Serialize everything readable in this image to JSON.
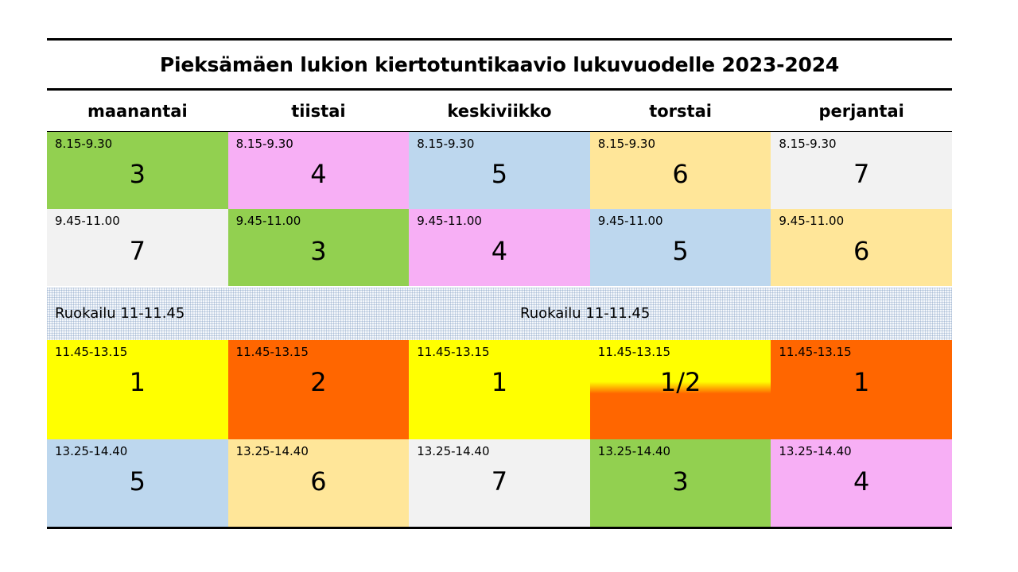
{
  "title": "Pieksämäen lukion kiertotuntikaavio lukuvuodelle 2023-2024",
  "days": [
    "maanantai",
    "tiistai",
    "keskiviikko",
    "torstai",
    "perjantai"
  ],
  "colors": {
    "green": "#92d050",
    "pink": "#f7aff5",
    "blue": "#bdd7ee",
    "peach": "#ffe699",
    "grey": "#f2f2f2",
    "yellow": "#ffff00",
    "orange": "#ff6600"
  },
  "rows": [
    {
      "time": "8.15-9.30",
      "cells": [
        {
          "num": "3",
          "color": "#92d050"
        },
        {
          "num": "4",
          "color": "#f7aff5"
        },
        {
          "num": "5",
          "color": "#bdd7ee"
        },
        {
          "num": "6",
          "color": "#ffe699"
        },
        {
          "num": "7",
          "color": "#f2f2f2"
        }
      ]
    },
    {
      "time": "9.45-11.00",
      "cells": [
        {
          "num": "7",
          "color": "#f2f2f2"
        },
        {
          "num": "3",
          "color": "#92d050"
        },
        {
          "num": "4",
          "color": "#f7aff5"
        },
        {
          "num": "5",
          "color": "#bdd7ee"
        },
        {
          "num": "6",
          "color": "#ffe699"
        }
      ]
    },
    {
      "time": "11.45-13.15",
      "cells": [
        {
          "num": "1",
          "color": "#ffff00"
        },
        {
          "num": "2",
          "color": "#ff6600"
        },
        {
          "num": "1",
          "color": "#ffff00"
        },
        {
          "num": "1/2",
          "color": "split"
        },
        {
          "num": "1",
          "color": "#ff6600"
        }
      ]
    },
    {
      "time": "13.25-14.40",
      "cells": [
        {
          "num": "5",
          "color": "#bdd7ee"
        },
        {
          "num": "6",
          "color": "#ffe699"
        },
        {
          "num": "7",
          "color": "#f2f2f2"
        },
        {
          "num": "3",
          "color": "#92d050"
        },
        {
          "num": "4",
          "color": "#f7aff5"
        }
      ]
    }
  ],
  "lunch": {
    "left": "Ruokailu 11-11.45",
    "center": "Ruokailu 11-11.45"
  }
}
